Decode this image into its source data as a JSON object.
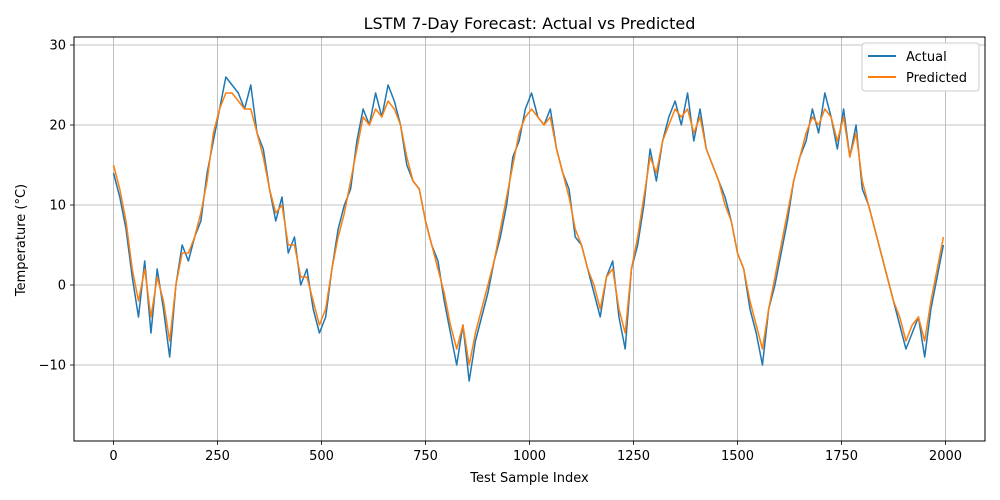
{
  "chart_data": {
    "type": "line",
    "title": "LSTM 7-Day Forecast: Actual vs Predicted",
    "xlabel": "Test Sample Index",
    "ylabel": "Temperature (°C)",
    "xlim": [
      -95,
      2095
    ],
    "ylim": [
      -19.5,
      31
    ],
    "xticks": [
      0,
      250,
      500,
      750,
      1000,
      1250,
      1500,
      1750,
      2000
    ],
    "yticks": [
      -10,
      0,
      10,
      20,
      30
    ],
    "xtick_labels": [
      "0",
      "250",
      "500",
      "750",
      "1000",
      "1250",
      "1500",
      "1750",
      "2000"
    ],
    "ytick_labels": [
      "−10",
      "0",
      "10",
      "20",
      "30"
    ],
    "grid": true,
    "legend_position": "top-right",
    "series": [
      {
        "name": "Actual",
        "color": "#1f77b4",
        "x": [
          0,
          15,
          30,
          45,
          60,
          75,
          90,
          105,
          120,
          135,
          150,
          165,
          180,
          195,
          210,
          225,
          240,
          255,
          270,
          285,
          300,
          315,
          330,
          345,
          360,
          375,
          390,
          405,
          420,
          435,
          450,
          465,
          480,
          495,
          510,
          525,
          540,
          555,
          570,
          585,
          600,
          615,
          630,
          645,
          660,
          675,
          690,
          705,
          720,
          735,
          750,
          765,
          780,
          795,
          810,
          825,
          840,
          855,
          870,
          885,
          900,
          915,
          930,
          945,
          960,
          975,
          990,
          1005,
          1020,
          1035,
          1050,
          1065,
          1080,
          1095,
          1110,
          1125,
          1140,
          1155,
          1170,
          1185,
          1200,
          1215,
          1230,
          1245,
          1260,
          1275,
          1290,
          1305,
          1320,
          1335,
          1350,
          1365,
          1380,
          1395,
          1410,
          1425,
          1440,
          1455,
          1470,
          1485,
          1500,
          1515,
          1530,
          1545,
          1560,
          1575,
          1590,
          1605,
          1620,
          1635,
          1650,
          1665,
          1680,
          1695,
          1710,
          1725,
          1740,
          1755,
          1770,
          1785,
          1800,
          1815,
          1830,
          1845,
          1860,
          1875,
          1890,
          1905,
          1920,
          1935,
          1950,
          1965,
          1980,
          1995
        ],
        "y": [
          14,
          11,
          7,
          1,
          -4,
          3,
          -6,
          2,
          -3,
          -9,
          0,
          5,
          3,
          6,
          8,
          14,
          18,
          22,
          26,
          25,
          24,
          22,
          25,
          19,
          17,
          12,
          8,
          11,
          4,
          6,
          0,
          2,
          -3,
          -6,
          -4,
          2,
          7,
          10,
          12,
          18,
          22,
          20,
          24,
          21,
          25,
          23,
          20,
          15,
          13,
          12,
          8,
          5,
          3,
          -2,
          -6,
          -10,
          -5,
          -12,
          -7,
          -4,
          -1,
          3,
          6,
          10,
          16,
          18,
          22,
          24,
          21,
          20,
          22,
          17,
          14,
          12,
          6,
          5,
          2,
          -1,
          -4,
          1,
          3,
          -4,
          -8,
          2,
          5,
          10,
          17,
          13,
          18,
          21,
          23,
          20,
          24,
          18,
          22,
          17,
          15,
          13,
          11,
          8,
          4,
          2,
          -3,
          -6,
          -10,
          -3,
          0,
          4,
          8,
          13,
          16,
          18,
          22,
          19,
          24,
          21,
          17,
          22,
          16,
          20,
          12,
          10,
          7,
          4,
          1,
          -2,
          -5,
          -8,
          -6,
          -4,
          -9,
          -3,
          1,
          5
        ]
      },
      {
        "name": "Predicted",
        "color": "#ff7f0e",
        "x": [
          0,
          15,
          30,
          45,
          60,
          75,
          90,
          105,
          120,
          135,
          150,
          165,
          180,
          195,
          210,
          225,
          240,
          255,
          270,
          285,
          300,
          315,
          330,
          345,
          360,
          375,
          390,
          405,
          420,
          435,
          450,
          465,
          480,
          495,
          510,
          525,
          540,
          555,
          570,
          585,
          600,
          615,
          630,
          645,
          660,
          675,
          690,
          705,
          720,
          735,
          750,
          765,
          780,
          795,
          810,
          825,
          840,
          855,
          870,
          885,
          900,
          915,
          930,
          945,
          960,
          975,
          990,
          1005,
          1020,
          1035,
          1050,
          1065,
          1080,
          1095,
          1110,
          1125,
          1140,
          1155,
          1170,
          1185,
          1200,
          1215,
          1230,
          1245,
          1260,
          1275,
          1290,
          1305,
          1320,
          1335,
          1350,
          1365,
          1380,
          1395,
          1410,
          1425,
          1440,
          1455,
          1470,
          1485,
          1500,
          1515,
          1530,
          1545,
          1560,
          1575,
          1590,
          1605,
          1620,
          1635,
          1650,
          1665,
          1680,
          1695,
          1710,
          1725,
          1740,
          1755,
          1770,
          1785,
          1800,
          1815,
          1830,
          1845,
          1860,
          1875,
          1890,
          1905,
          1920,
          1935,
          1950,
          1965,
          1980,
          1995
        ],
        "y": [
          15,
          12,
          8,
          2,
          -2,
          2,
          -4,
          1,
          -2,
          -7,
          0,
          4,
          4,
          6,
          9,
          13,
          19,
          22,
          24,
          24,
          23,
          22,
          22,
          19,
          16,
          12,
          9,
          10,
          5,
          5,
          1,
          1,
          -2,
          -5,
          -3,
          2,
          6,
          9,
          13,
          17,
          21,
          20,
          22,
          21,
          23,
          22,
          20,
          16,
          13,
          12,
          8,
          5,
          2,
          -1,
          -5,
          -8,
          -5,
          -10,
          -6,
          -3,
          0,
          3,
          7,
          11,
          15,
          19,
          21,
          22,
          21,
          20,
          21,
          17,
          14,
          11,
          7,
          5,
          2,
          0,
          -3,
          1,
          2,
          -3,
          -6,
          2,
          6,
          11,
          16,
          14,
          18,
          20,
          22,
          21,
          22,
          19,
          21,
          17,
          15,
          13,
          10,
          8,
          4,
          2,
          -2,
          -5,
          -8,
          -3,
          1,
          5,
          9,
          13,
          16,
          19,
          21,
          20,
          22,
          21,
          18,
          21,
          16,
          19,
          13,
          10,
          7,
          4,
          1,
          -2,
          -4,
          -7,
          -5,
          -4,
          -7,
          -2,
          2,
          6
        ]
      }
    ]
  }
}
